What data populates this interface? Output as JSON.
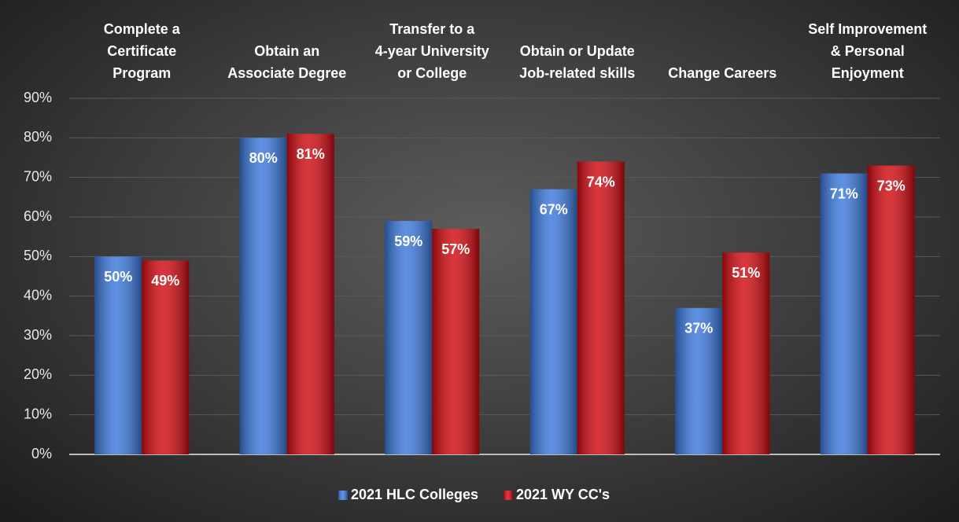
{
  "chart_data": {
    "type": "bar",
    "categories": [
      "Complete a\nCertificate\nProgram",
      "Obtain an\nAssociate Degree",
      "Transfer to a\n4-year University\nor College",
      "Obtain or Update\nJob-related skills",
      "Change Careers",
      "Self Improvement\n& Personal\nEnjoyment"
    ],
    "series": [
      {
        "name": "2021 HLC Colleges",
        "color": "#3b78dc",
        "values": [
          50,
          80,
          59,
          67,
          37,
          71
        ],
        "value_labels": [
          "50%",
          "80%",
          "59%",
          "67%",
          "37%",
          "71%"
        ]
      },
      {
        "name": "2021 WY CC's",
        "color": "#d10a10",
        "values": [
          49,
          81,
          57,
          74,
          51,
          73
        ],
        "value_labels": [
          "49%",
          "81%",
          "57%",
          "74%",
          "51%",
          "73%"
        ]
      }
    ],
    "ylim": [
      0,
      90
    ],
    "yticks": [
      {
        "value": 0,
        "label": "0%"
      },
      {
        "value": 10,
        "label": "10%"
      },
      {
        "value": 20,
        "label": "20%"
      },
      {
        "value": 30,
        "label": "30%"
      },
      {
        "value": 40,
        "label": "40%"
      },
      {
        "value": 50,
        "label": "50%"
      },
      {
        "value": 60,
        "label": "60%"
      },
      {
        "value": 70,
        "label": "70%"
      },
      {
        "value": 80,
        "label": "80%"
      },
      {
        "value": 90,
        "label": "90%"
      }
    ],
    "grid": true,
    "legend": "bottom"
  }
}
